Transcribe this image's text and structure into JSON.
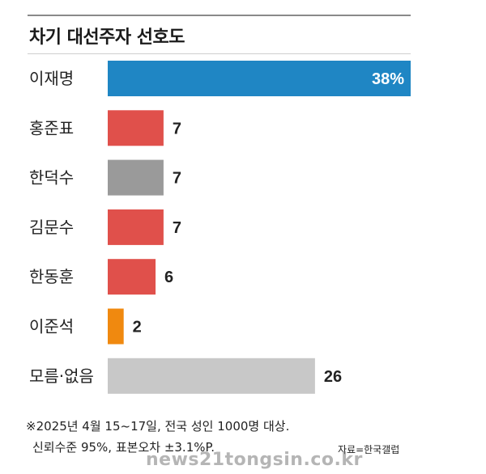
{
  "chart_data": {
    "type": "bar",
    "orientation": "horizontal",
    "title": "차기 대선주자 선호도",
    "categories": [
      "이재명",
      "홍준표",
      "한덕수",
      "김문수",
      "한동훈",
      "이준석",
      "모름·없음"
    ],
    "values": [
      38,
      7,
      7,
      7,
      6,
      2,
      26
    ],
    "value_labels": [
      "38%",
      "7",
      "7",
      "7",
      "6",
      "2",
      "26"
    ],
    "bar_colors": [
      "#1f86c4",
      "#e0504b",
      "#9a9a9a",
      "#e0504b",
      "#e0504b",
      "#f0890f",
      "#c8c8c8"
    ],
    "xlim": [
      0,
      38
    ],
    "grid": false,
    "legend": "none"
  },
  "footnote": {
    "line1": "※2025년 4월 15~17일, 전국 성인 1000명 대상.",
    "line2": "신뢰수준 95%, 표본오차 ±3.1%P."
  },
  "source": "자료=한국갤럽",
  "watermark": "news21tongsin.co.kr"
}
